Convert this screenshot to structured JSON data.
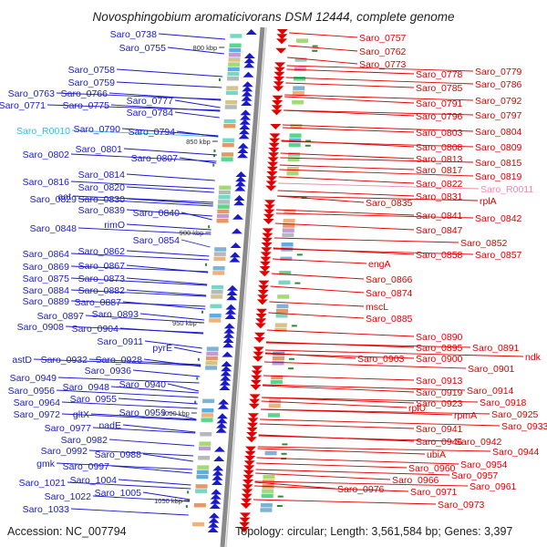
{
  "title": "Novosphingobium aromaticivorans DSM 12444, complete genome",
  "accession": "Accession: NC_007794",
  "summary": "Topology: circular; Length: 3,561,584 bp; Genes: 3,397",
  "colors": {
    "forward": "#1a1acc",
    "reverse": "#e00000",
    "rna_forward": "#33bbee",
    "rna_reverse": "#ee88aa",
    "backbone": "#8a8a8a"
  },
  "scale_labels": [
    "800 kbp",
    "850 kbp",
    "900 kbp",
    "950 kbp",
    "1000 kbp",
    "1050 kbp"
  ],
  "left_labels": [
    "Saro_0738",
    "Saro_0755",
    "Saro_0758",
    "Saro_0759",
    "Saro_0763",
    "Saro_0766",
    "Saro_0771",
    "Saro_0775",
    "Saro_0777",
    "Saro_0784",
    "Saro_R0010",
    "Saro_0790",
    "Saro_0794",
    "Saro_0801",
    "Saro_0802",
    "Saro_0807",
    "Saro_0814",
    "Saro_0816",
    "Saro_0820",
    "aat",
    "Saro_0829",
    "Saro_0830",
    "Saro_0839",
    "Saro_0840",
    "rimO",
    "Saro_0848",
    "Saro_0854",
    "Saro_0862",
    "Saro_0864",
    "Saro_0867",
    "Saro_0869",
    "Saro_0873",
    "Saro_0875",
    "Saro_0882",
    "Saro_0884",
    "Saro_0887",
    "Saro_0889",
    "Saro_0893",
    "Saro_0897",
    "Saro_0904",
    "Saro_0908",
    "Saro_0911",
    "pyrE",
    "astD",
    "Saro_0928",
    "Saro_0932",
    "Saro_0936",
    "Saro_0940",
    "Saro_0949",
    "Saro_0948",
    "Saro_0956",
    "Saro_0955",
    "Saro_0964",
    "Saro_0959",
    "gltX",
    "Saro_0972",
    "nadE",
    "Saro_0977",
    "Saro_0982",
    "Saro_0988",
    "Saro_0992",
    "gmk",
    "Saro_0997",
    "Saro_1004",
    "Saro_1021",
    "Saro_1005",
    "Saro_1022",
    "Saro_1033"
  ],
  "right_labels": [
    "Saro_0757",
    "Saro_0762",
    "Saro_0773",
    "Saro_0778",
    "Saro_0779",
    "Saro_0786",
    "Saro_0785",
    "Saro_0792",
    "Saro_0791",
    "Saro_0797",
    "Saro_0796",
    "Saro_0804",
    "Saro_0803",
    "Saro_0809",
    "Saro_0808",
    "Saro_0815",
    "Saro_0813",
    "Saro_0819",
    "Saro_0817",
    "Saro_R0011",
    "Saro_0822",
    "rplA",
    "Saro_0831",
    "Saro_0835",
    "Saro_0842",
    "Saro_0841",
    "Saro_0847",
    "Saro_0852",
    "Saro_0857",
    "Saro_0858",
    "engA",
    "Saro_0866",
    "Saro_0874",
    "mscL",
    "Saro_0885",
    "Saro_0890",
    "Saro_0891",
    "Saro_0895",
    "ndk",
    "Saro_0900",
    "Saro_0903",
    "Saro_0901",
    "Saro_0913",
    "Saro_0914",
    "Saro_0919",
    "Saro_0918",
    "Saro_0923",
    "rplU",
    "Saro_0925",
    "rpmA",
    "Saro_0933",
    "Saro_0941",
    "Saro_0942",
    "Saro_0946",
    "Saro_0944",
    "ubiA",
    "Saro_0954",
    "Saro_0960",
    "Saro_0957",
    "Saro_0966",
    "Saro_0961",
    "Saro_0971",
    "Saro_0976",
    "Saro_0973"
  ]
}
